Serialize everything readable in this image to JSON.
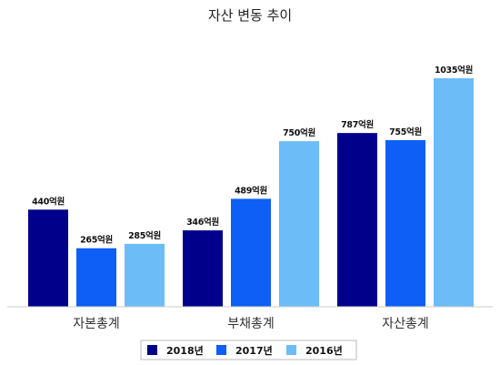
{
  "chart_data": {
    "type": "bar",
    "title": "자산 변동 추이",
    "categories": [
      "자본총계",
      "부채총계",
      "자산총계"
    ],
    "series": [
      {
        "name": "2018년",
        "color": "#00008b",
        "values": [
          440,
          346,
          787
        ],
        "labels": [
          "440억원",
          "346억원",
          "787억원"
        ]
      },
      {
        "name": "2017년",
        "color": "#0d5ff5",
        "values": [
          265,
          489,
          755
        ],
        "labels": [
          "265억원",
          "489억원",
          "755억원"
        ]
      },
      {
        "name": "2016년",
        "color": "#6cbcf8",
        "values": [
          285,
          750,
          1035
        ],
        "labels": [
          "285억원",
          "750억원",
          "1035억원"
        ]
      }
    ],
    "ylim": [
      0,
      1035
    ],
    "grid": false,
    "legend_position": "bottom"
  }
}
